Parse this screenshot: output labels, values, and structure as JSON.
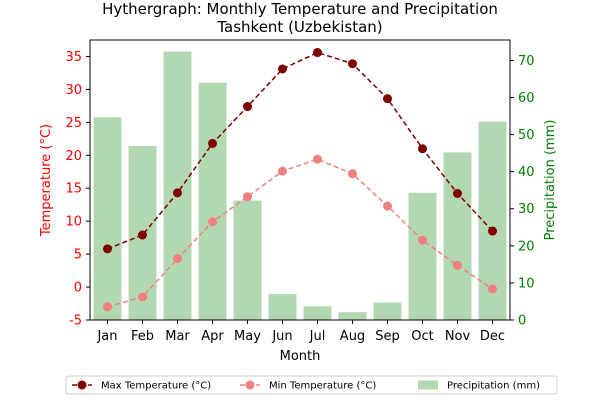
{
  "chart_data": {
    "type": "bar+line",
    "title_line1": "Hythergraph: Monthly Temperature and Precipitation",
    "title_line2": "Tashkent (Uzbekistan)",
    "xlabel": "Month",
    "ylabel_left": "Temperature (°C)",
    "ylabel_right": "Precipitation (mm)",
    "categories": [
      "Jan",
      "Feb",
      "Mar",
      "Apr",
      "May",
      "Jun",
      "Jul",
      "Aug",
      "Sep",
      "Oct",
      "Nov",
      "Dec"
    ],
    "ylim_left": [
      -5,
      37.5
    ],
    "ylim_right": [
      0,
      75.5
    ],
    "yticks_left": [
      -5,
      0,
      5,
      10,
      15,
      20,
      25,
      30,
      35
    ],
    "yticks_right": [
      0,
      10,
      20,
      30,
      40,
      50,
      60,
      70
    ],
    "grid": false,
    "legend_placement": "bottom-center",
    "series": [
      {
        "name": "Max Temperature (°C)",
        "kind": "line",
        "axis": "left",
        "color": "#800000",
        "values": [
          5.8,
          7.9,
          14.3,
          21.8,
          27.4,
          33.1,
          35.6,
          33.9,
          28.6,
          21.0,
          14.2,
          8.5
        ]
      },
      {
        "name": "Min Temperature (°C)",
        "kind": "line",
        "axis": "left",
        "color": "#f08080",
        "values": [
          -3.0,
          -1.5,
          4.3,
          9.9,
          13.7,
          17.6,
          19.4,
          17.2,
          12.3,
          7.1,
          3.3,
          -0.3
        ]
      },
      {
        "name": "Precipitation (mm)",
        "kind": "bar",
        "axis": "right",
        "color": "#b2d8b2",
        "values": [
          54.7,
          46.9,
          72.4,
          64.0,
          32.2,
          7.0,
          3.7,
          2.1,
          4.7,
          34.3,
          45.2,
          53.5
        ]
      }
    ],
    "colors": {
      "left_axis": "#ff0000",
      "right_axis": "#008000"
    }
  }
}
